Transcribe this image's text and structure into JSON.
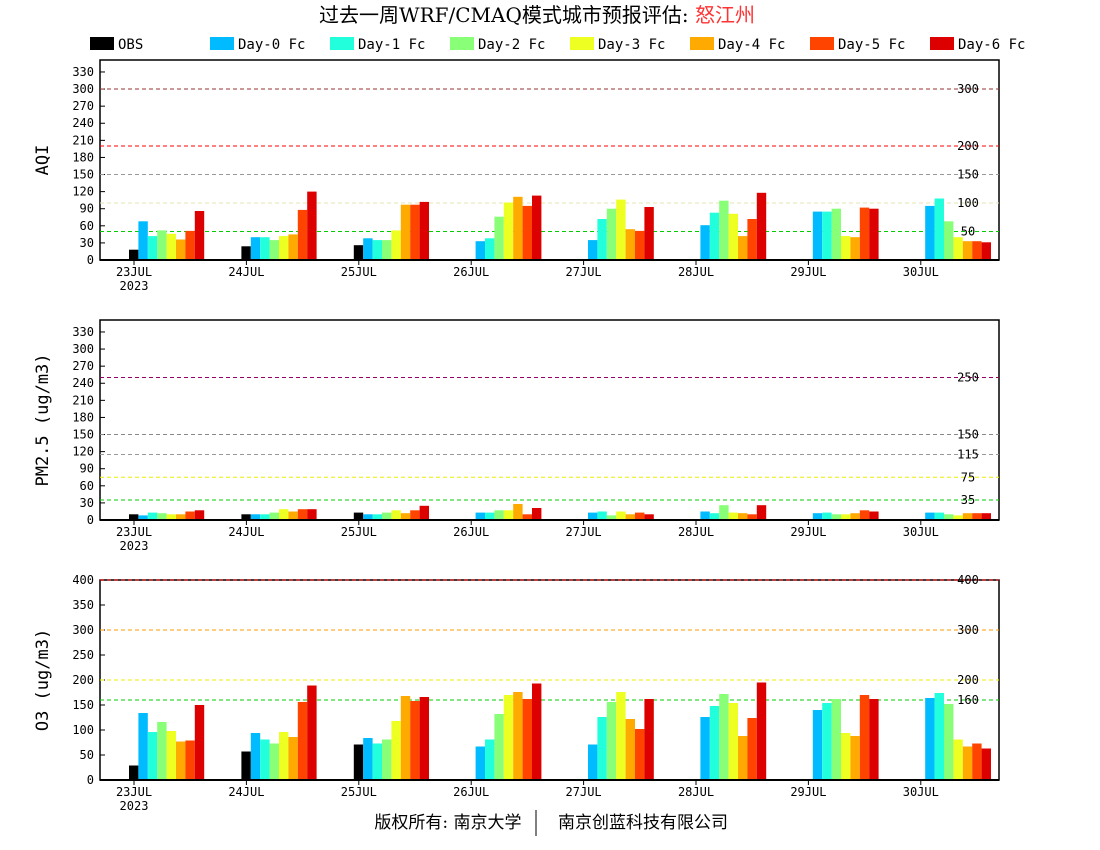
{
  "title": {
    "main": "过去一周WRF/CMAQ模式城市预报评估: ",
    "city": "怒江州",
    "city_color": "#FF3333"
  },
  "footer": {
    "left": "版权所有: 南京大学",
    "right": "南京创蓝科技有限公司"
  },
  "legend": [
    {
      "name": "OBS",
      "color": "#000000"
    },
    {
      "name": "Day-0 Fc",
      "color": "#00BBFF"
    },
    {
      "name": "Day-1 Fc",
      "color": "#22FFDD"
    },
    {
      "name": "Day-2 Fc",
      "color": "#88FF77"
    },
    {
      "name": "Day-3 Fc",
      "color": "#EEFF22"
    },
    {
      "name": "Day-4 Fc",
      "color": "#FFAA00"
    },
    {
      "name": "Day-5 Fc",
      "color": "#FF4400"
    },
    {
      "name": "Day-6 Fc",
      "color": "#DD0000"
    }
  ],
  "chart_data": [
    {
      "type": "bar",
      "ylabel": "AQI",
      "categories": [
        "23JUL",
        "24JUL",
        "25JUL",
        "26JUL",
        "27JUL",
        "28JUL",
        "29JUL",
        "30JUL"
      ],
      "year_label": "2023",
      "ylim": [
        0,
        351
      ],
      "yticks": [
        0,
        30,
        60,
        90,
        120,
        150,
        180,
        210,
        240,
        270,
        300,
        330
      ],
      "thresholds": [
        {
          "value": 50,
          "label": "50",
          "color": "#00CC00"
        },
        {
          "value": 100,
          "label": "100",
          "color": "#E6E6B0"
        },
        {
          "value": 150,
          "label": "150",
          "color": "#999999"
        },
        {
          "value": 200,
          "label": "200",
          "color": "#FF0000"
        },
        {
          "value": 300,
          "label": "300",
          "color": "#993333"
        }
      ],
      "series": [
        {
          "name": "OBS",
          "values": [
            18,
            24,
            26,
            null,
            null,
            null,
            null,
            null
          ]
        },
        {
          "name": "Day-0 Fc",
          "values": [
            68,
            40,
            38,
            33,
            35,
            61,
            85,
            95
          ]
        },
        {
          "name": "Day-1 Fc",
          "values": [
            42,
            40,
            35,
            38,
            72,
            83,
            85,
            108
          ]
        },
        {
          "name": "Day-2 Fc",
          "values": [
            52,
            35,
            35,
            76,
            90,
            104,
            90,
            68
          ]
        },
        {
          "name": "Day-3 Fc",
          "values": [
            46,
            42,
            52,
            101,
            106,
            81,
            42,
            40
          ]
        },
        {
          "name": "Day-4 Fc",
          "values": [
            36,
            45,
            97,
            111,
            54,
            42,
            40,
            33
          ]
        },
        {
          "name": "Day-5 Fc",
          "values": [
            51,
            88,
            97,
            95,
            51,
            72,
            92,
            33
          ]
        },
        {
          "name": "Day-6 Fc",
          "values": [
            86,
            120,
            102,
            113,
            93,
            118,
            90,
            31
          ]
        }
      ]
    },
    {
      "type": "bar",
      "ylabel": "PM2.5 (ug/m3)",
      "categories": [
        "23JUL",
        "24JUL",
        "25JUL",
        "26JUL",
        "27JUL",
        "28JUL",
        "29JUL",
        "30JUL"
      ],
      "year_label": "2023",
      "ylim": [
        0,
        351
      ],
      "yticks": [
        0,
        30,
        60,
        90,
        120,
        150,
        180,
        210,
        240,
        270,
        300,
        330
      ],
      "thresholds": [
        {
          "value": 35,
          "label": "35",
          "color": "#00CC00"
        },
        {
          "value": 75,
          "label": "75",
          "color": "#EEEE00"
        },
        {
          "value": 115,
          "label": "115",
          "color": "#999999"
        },
        {
          "value": 150,
          "label": "150",
          "color": "#888888"
        },
        {
          "value": 250,
          "label": "250",
          "color": "#990066"
        }
      ],
      "series": [
        {
          "name": "OBS",
          "values": [
            10,
            10,
            13,
            null,
            null,
            null,
            null,
            null
          ]
        },
        {
          "name": "Day-0 Fc",
          "values": [
            8,
            10,
            10,
            13,
            13,
            15,
            12,
            13
          ]
        },
        {
          "name": "Day-1 Fc",
          "values": [
            13,
            10,
            10,
            13,
            15,
            12,
            13,
            13
          ]
        },
        {
          "name": "Day-2 Fc",
          "values": [
            12,
            13,
            13,
            17,
            8,
            26,
            10,
            10
          ]
        },
        {
          "name": "Day-3 Fc",
          "values": [
            10,
            19,
            17,
            17,
            15,
            13,
            10,
            8
          ]
        },
        {
          "name": "Day-4 Fc",
          "values": [
            10,
            15,
            12,
            28,
            10,
            12,
            12,
            12
          ]
        },
        {
          "name": "Day-5 Fc",
          "values": [
            15,
            19,
            17,
            10,
            13,
            10,
            17,
            12
          ]
        },
        {
          "name": "Day-6 Fc",
          "values": [
            17,
            19,
            25,
            21,
            10,
            26,
            15,
            12
          ]
        }
      ]
    },
    {
      "type": "bar",
      "ylabel": "O3 (ug/m3)",
      "categories": [
        "23JUL",
        "24JUL",
        "25JUL",
        "26JUL",
        "27JUL",
        "28JUL",
        "29JUL",
        "30JUL"
      ],
      "year_label": "2023",
      "ylim": [
        0,
        400
      ],
      "yticks": [
        0,
        50,
        100,
        150,
        200,
        250,
        300,
        350,
        400
      ],
      "thresholds": [
        {
          "value": 160,
          "label": "160",
          "color": "#00CC00"
        },
        {
          "value": 200,
          "label": "200",
          "color": "#EEEE00"
        },
        {
          "value": 300,
          "label": "300",
          "color": "#FF9900"
        },
        {
          "value": 400,
          "label": "400",
          "color": "#FF0000"
        }
      ],
      "series": [
        {
          "name": "OBS",
          "values": [
            29,
            57,
            71,
            null,
            null,
            null,
            null,
            null
          ]
        },
        {
          "name": "Day-0 Fc",
          "values": [
            134,
            94,
            84,
            67,
            71,
            126,
            140,
            164
          ]
        },
        {
          "name": "Day-1 Fc",
          "values": [
            96,
            81,
            73,
            81,
            126,
            148,
            154,
            174
          ]
        },
        {
          "name": "Day-2 Fc",
          "values": [
            116,
            73,
            81,
            132,
            156,
            172,
            162,
            152
          ]
        },
        {
          "name": "Day-3 Fc",
          "values": [
            98,
            96,
            118,
            170,
            176,
            154,
            94,
            81
          ]
        },
        {
          "name": "Day-4 Fc",
          "values": [
            77,
            86,
            168,
            176,
            122,
            88,
            88,
            67
          ]
        },
        {
          "name": "Day-5 Fc",
          "values": [
            79,
            156,
            158,
            162,
            102,
            124,
            170,
            73
          ]
        },
        {
          "name": "Day-6 Fc",
          "values": [
            150,
            189,
            166,
            193,
            162,
            195,
            162,
            63
          ]
        }
      ]
    }
  ]
}
